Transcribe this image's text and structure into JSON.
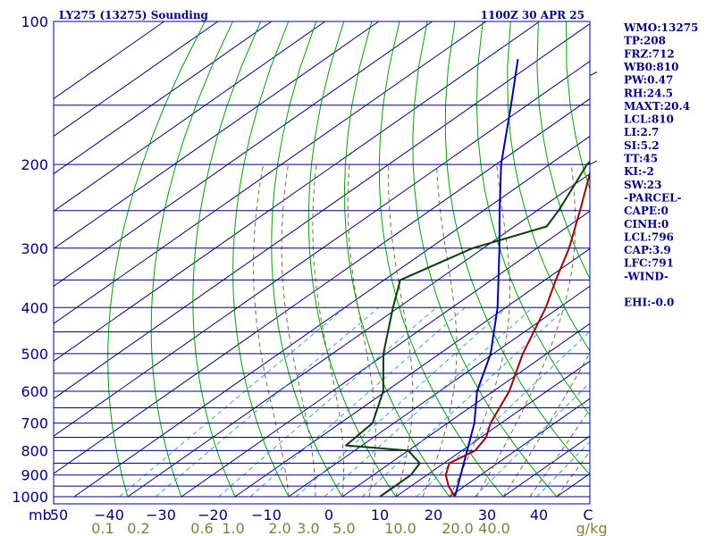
{
  "title_left": "LY275 (13275) Sounding",
  "title_right": "1100Z 30 APR 25",
  "chart_data": {
    "type": "skew-t log-p sounding",
    "y_axis": {
      "scale": "log",
      "reversed": true,
      "ylim": [
        1000,
        100
      ],
      "ticks": [
        100,
        200,
        300,
        400,
        500,
        600,
        700,
        800,
        900,
        1000
      ],
      "unit_label": "mb"
    },
    "isobars_mb": [
      100,
      150,
      200,
      250,
      300,
      350,
      400,
      450,
      500,
      550,
      600,
      650,
      700,
      750,
      800,
      850,
      900,
      950,
      1000
    ],
    "x_axis": {
      "unit": "°C",
      "xlim": [
        -50,
        50
      ],
      "tick_labels": [
        "50",
        "−40",
        "−30",
        "−20",
        "−10",
        "0",
        "10",
        "20",
        "30",
        "40",
        "C"
      ]
    },
    "mixing_ratio_labels": [
      "0.1",
      "0.2",
      "0.6",
      "1.0",
      "2.0",
      "3.0",
      "5.0",
      "10.0",
      "20.0",
      "40.0",
      "g/kg"
    ],
    "temperature": [
      [
        1000,
        21
      ],
      [
        950,
        17
      ],
      [
        900,
        13.5
      ],
      [
        850,
        11
      ],
      [
        800,
        12.5
      ],
      [
        750,
        11
      ],
      [
        700,
        8
      ],
      [
        600,
        3
      ],
      [
        500,
        -4.5
      ],
      [
        400,
        -12.5
      ],
      [
        350,
        -18
      ],
      [
        300,
        -24
      ],
      [
        250,
        -32
      ],
      [
        200,
        -42
      ],
      [
        175,
        -41.5
      ],
      [
        150,
        -35
      ],
      [
        100,
        -38
      ]
    ],
    "dewpoint": [
      [
        1000,
        7
      ],
      [
        900,
        7
      ],
      [
        850,
        5.5
      ],
      [
        800,
        0
      ],
      [
        780,
        -13
      ],
      [
        700,
        -14
      ],
      [
        600,
        -20.5
      ],
      [
        500,
        -30.5
      ],
      [
        400,
        -41
      ],
      [
        350,
        -47
      ],
      [
        300,
        -42
      ],
      [
        270,
        -34
      ],
      [
        250,
        -36
      ],
      [
        220,
        -40
      ],
      [
        200,
        -43
      ],
      [
        170,
        -45
      ],
      [
        100,
        -50.5
      ]
    ],
    "parcel_trace": [
      [
        1000,
        21
      ],
      [
        800,
        11
      ],
      [
        700,
        5
      ],
      [
        600,
        -3
      ],
      [
        500,
        -10.5
      ],
      [
        400,
        -21.5
      ],
      [
        300,
        -37
      ],
      [
        250,
        -47
      ],
      [
        200,
        -59
      ],
      [
        150,
        -73
      ],
      [
        120,
        -84
      ]
    ],
    "wind_barbs_mb": [
      130,
      200
    ]
  },
  "indices": [
    "WMO:13275",
    "TP:208",
    "FRZ:712",
    "WB0:810",
    "PW:0.47",
    "RH:24.5",
    "MAXT:20.4",
    "LCL:810",
    "LI:2.7",
    "SI:5.2",
    "TT:45",
    "KI:-2",
    "SW:23",
    "-PARCEL-",
    "CAPE:0",
    "CINH:0",
    "LCL:796",
    "CAP:3.9",
    "LFC:791",
    "-WIND-",
    "",
    "EHI:-0.0"
  ],
  "colors": {
    "frame": "#0000a0",
    "isobar": "#00008b",
    "isotherm": "#000080",
    "dry_adiabat": "#00a000",
    "moist_adiabat": "#7a6a3a",
    "mixing_ratio": "#3aa0d0",
    "temperature": "#a00000",
    "dewpoint": "#0a3d0a",
    "parcel": "#0000aa",
    "label": "#000080",
    "mixing_label": "#7f7f3f"
  }
}
